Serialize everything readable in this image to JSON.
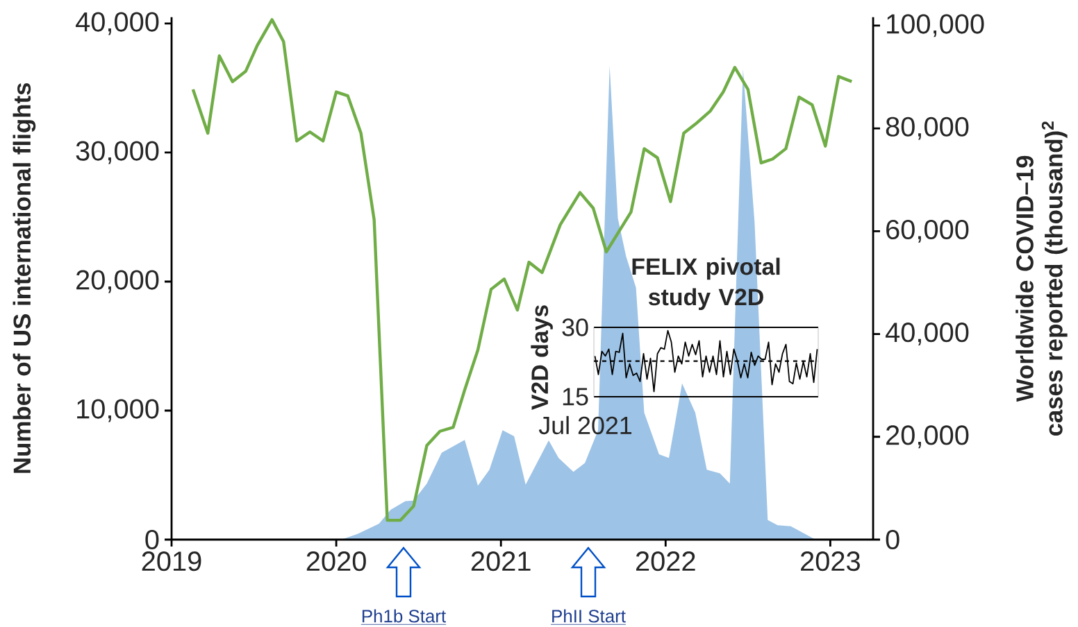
{
  "chart_data": [
    {
      "type": "line",
      "ylabel": "Number of US international flights",
      "y2label": "Worldwide COVID–19 cases reported (thousand)$^{2}$",
      "xlim": [
        2019,
        2023.26
      ],
      "xticks": [
        2019,
        2020,
        2021,
        2022,
        2023
      ],
      "ylim": [
        0,
        40500
      ],
      "yticks": [
        0,
        {
          "value": 10000,
          "label": "10,000"
        },
        {
          "value": 20000,
          "label": "20,000"
        },
        {
          "value": 30000,
          "label": "30,000"
        },
        {
          "value": 40000,
          "label": "40,000"
        }
      ],
      "y2lim": [
        0,
        101650
      ],
      "y2ticks": [
        0,
        {
          "value": 20000,
          "label": "20,000"
        },
        {
          "value": 40000,
          "label": "40,000"
        },
        {
          "value": 60000,
          "label": "60,000"
        },
        {
          "value": 80000,
          "label": "80,000"
        },
        {
          "value": 100000,
          "label": "100,000"
        }
      ],
      "series": [
        {
          "type": "area",
          "axis": "y2",
          "color": "#9dc3e6",
          "x": [
            2020.03,
            2020.13,
            2020.26,
            2020.33,
            2020.42,
            2020.47,
            2020.55,
            2020.64,
            2020.78,
            2020.86,
            2020.93,
            2021.01,
            2021.08,
            2021.15,
            2021.29,
            2021.35,
            2021.44,
            2021.51,
            2021.59,
            2021.66,
            2021.71,
            2021.76,
            2021.82,
            2021.87,
            2021.96,
            2022.02,
            2022.1,
            2022.18,
            2022.25,
            2022.33,
            2022.39,
            2022.47,
            2022.54,
            2022.62,
            2022.68,
            2022.76,
            2022.91
          ],
          "values": [
            0,
            1100,
            3100,
            5800,
            7500,
            7600,
            10900,
            16900,
            19400,
            10500,
            13600,
            21300,
            20100,
            10700,
            19300,
            15900,
            13200,
            14900,
            21300,
            92200,
            62500,
            55100,
            49000,
            24700,
            16600,
            15900,
            30400,
            24700,
            13600,
            12900,
            10900,
            91500,
            61800,
            3800,
            2800,
            2600,
            0
          ]
        },
        {
          "type": "line",
          "axis": "y",
          "color": "#70ad47",
          "x": [
            2019.13,
            2019.22,
            2019.29,
            2019.37,
            2019.45,
            2019.52,
            2019.61,
            2019.68,
            2019.76,
            2019.84,
            2019.92,
            2020.0,
            2020.07,
            2020.15,
            2020.23,
            2020.31,
            2020.39,
            2020.47,
            2020.55,
            2020.63,
            2020.71,
            2020.78,
            2020.86,
            2020.94,
            2021.02,
            2021.1,
            2021.17,
            2021.25,
            2021.36,
            2021.48,
            2021.56,
            2021.64,
            2021.79,
            2021.87,
            2021.95,
            2022.03,
            2022.11,
            2022.18,
            2022.27,
            2022.35,
            2022.42,
            2022.5,
            2022.58,
            2022.65,
            2022.73,
            2022.81,
            2022.89,
            2022.97,
            2023.05,
            2023.13
          ],
          "values": [
            34900,
            31500,
            37500,
            35500,
            36300,
            38300,
            40300,
            38600,
            30900,
            31600,
            30900,
            34700,
            34400,
            31500,
            24800,
            1500,
            1500,
            2600,
            7300,
            8400,
            8700,
            11600,
            14700,
            19400,
            20200,
            17800,
            21500,
            20700,
            24400,
            26900,
            25700,
            22300,
            25400,
            30300,
            29600,
            26200,
            31500,
            32200,
            33200,
            34700,
            36600,
            34900,
            29200,
            29500,
            30300,
            34300,
            33700,
            30500,
            35900,
            35500
          ]
        }
      ],
      "annotations": [
        "Ph1b Start",
        "PhII Start"
      ]
    },
    {
      "type": "line",
      "title": "FELIX pivotal study V2D",
      "ylabel": "V2D days",
      "xlabel": "Jul 2021",
      "ylim": [
        15,
        30
      ],
      "yticks": [
        15,
        30
      ],
      "categories": [
        null,
        null,
        null,
        null,
        null,
        null,
        null,
        null,
        null,
        null,
        null,
        null,
        null,
        null,
        null,
        null,
        null,
        null,
        null,
        null,
        null,
        null,
        null,
        null,
        null,
        null,
        null,
        null,
        null,
        null,
        null,
        null,
        null,
        null,
        null,
        null,
        null,
        null,
        null,
        null,
        null,
        null,
        null,
        null,
        null,
        null,
        null,
        null,
        null,
        null,
        null,
        null,
        null,
        null,
        null,
        null,
        null,
        null,
        null,
        null,
        null,
        null,
        null,
        null,
        null
      ],
      "series": [
        {
          "color": "#000000",
          "values": [
            23.8,
            19.8,
            24.8,
            23.8,
            25.3,
            19.8,
            24.8,
            24.6,
            28.7,
            19.1,
            22.1,
            19.6,
            20.1,
            18.3,
            24.3,
            18.8,
            23.3,
            16.1,
            24.3,
            25.6,
            25.3,
            29.3,
            26.8,
            20.3,
            23.8,
            22.1,
            26.8,
            23.8,
            26.3,
            24.1,
            27.1,
            19.3,
            23.8,
            20.3,
            23.8,
            19.8,
            27.1,
            19.3,
            24.8,
            19.8,
            25.3,
            22.8,
            19.1,
            22.1,
            19.1,
            24.6,
            21.8,
            23.8,
            23.1,
            23.1,
            26.8,
            17.6,
            22.1,
            20.3,
            24.3,
            26.3,
            18.3,
            17.8,
            22.3,
            18.8,
            22.6,
            19.3,
            24.3,
            18.1,
            25.3
          ]
        }
      ],
      "ref_lines": [
        {
          "axis": "y",
          "value": 22.7,
          "line_style": "dashed"
        }
      ]
    }
  ]
}
